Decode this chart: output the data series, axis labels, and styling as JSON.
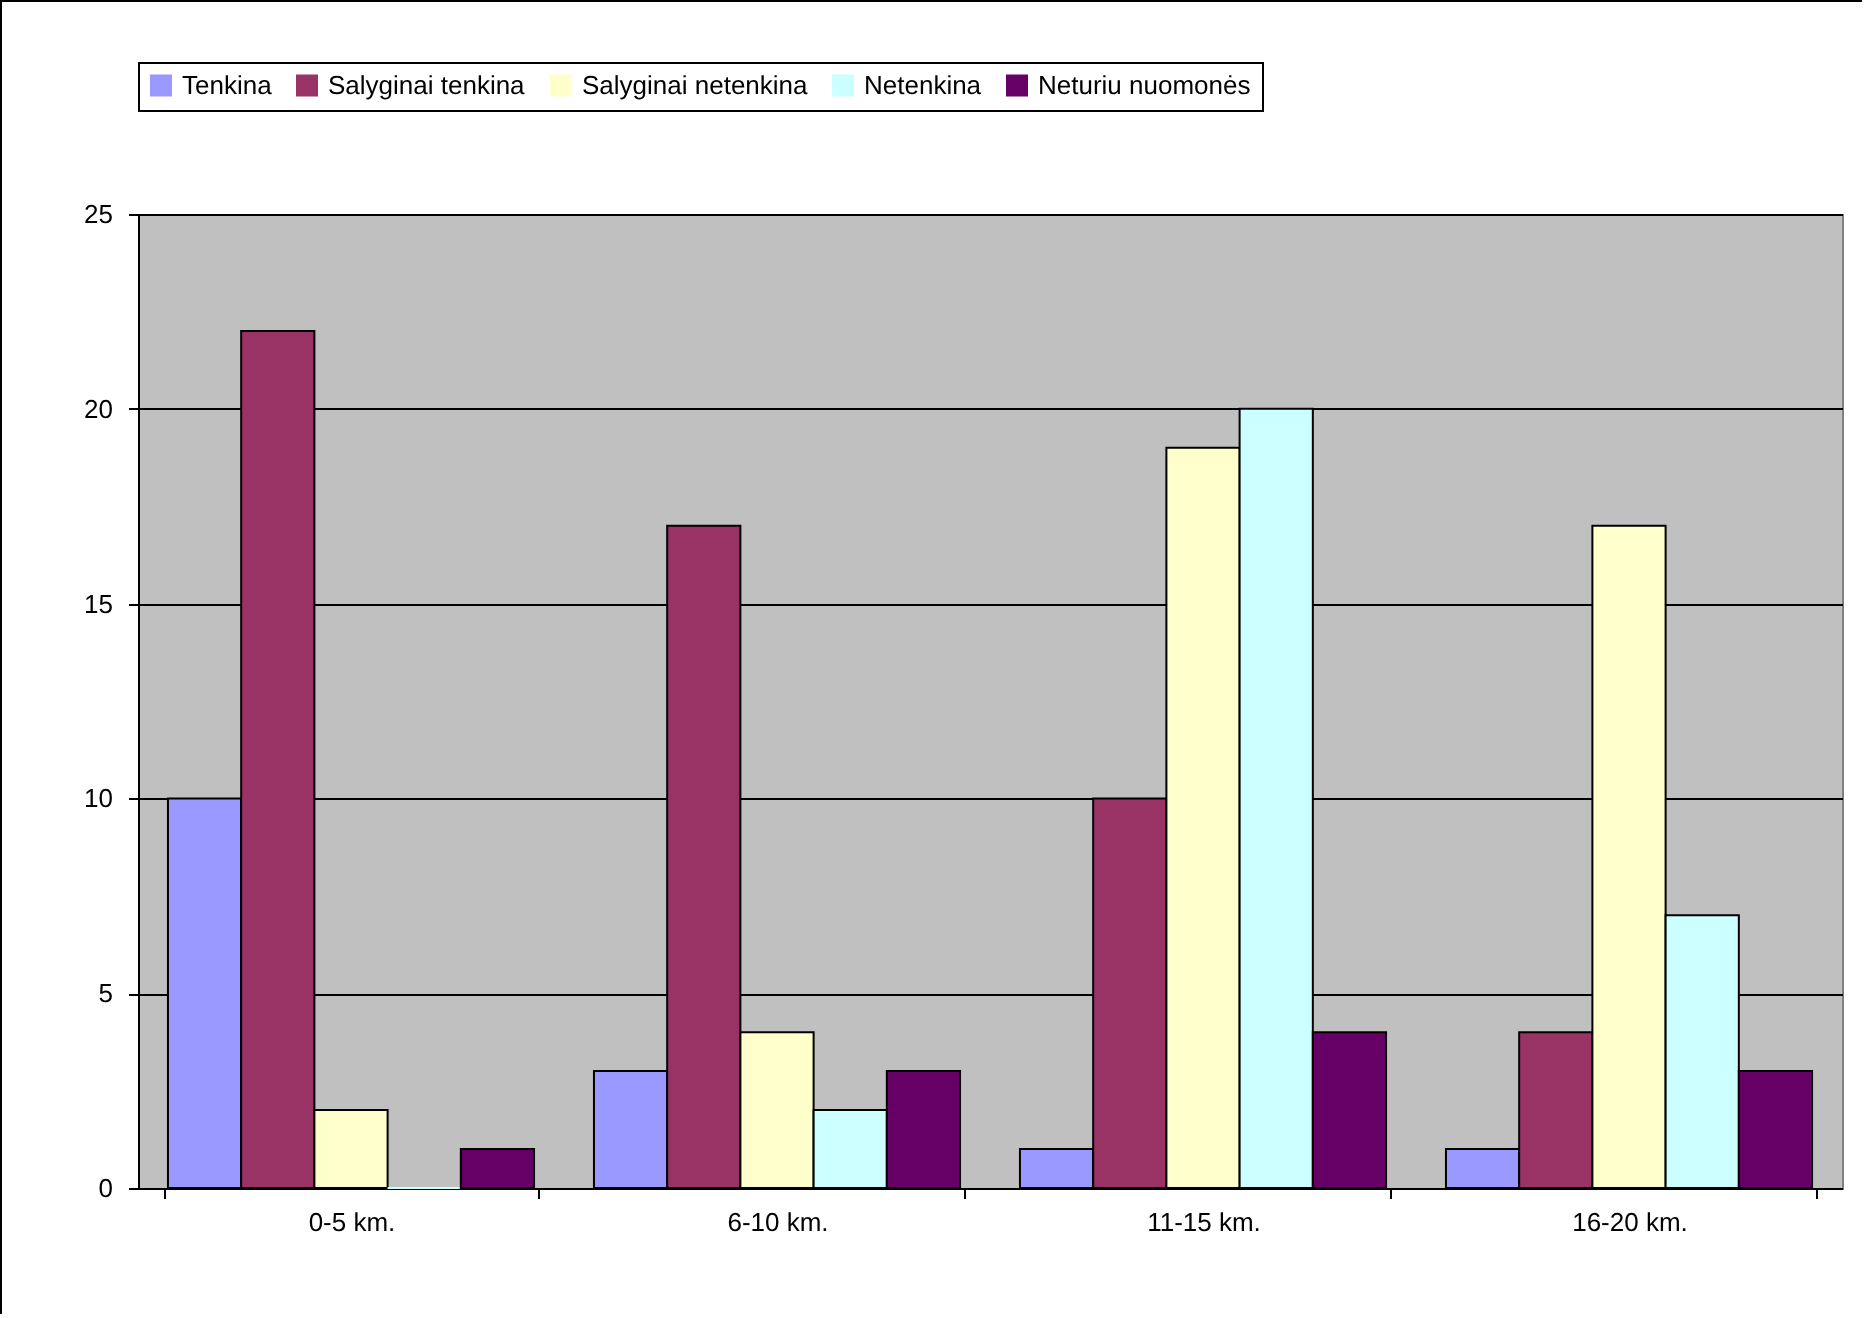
{
  "chart_data": {
    "type": "bar",
    "categories": [
      "0-5 km.",
      "6-10 km.",
      "11-15 km.",
      "16-20 km."
    ],
    "series": [
      {
        "name": "Tenkina",
        "color": "#9999ff",
        "values": [
          10,
          3,
          1,
          1
        ]
      },
      {
        "name": "Salyginai tenkina",
        "color": "#993366",
        "values": [
          22,
          17,
          10,
          4
        ]
      },
      {
        "name": "Salyginai netenkina",
        "color": "#ffffcc",
        "values": [
          2,
          4,
          19,
          17
        ]
      },
      {
        "name": "Netenkina",
        "color": "#ccffff",
        "values": [
          0,
          2,
          20,
          7
        ]
      },
      {
        "name": "Neturiu nuomonės",
        "color": "#660066",
        "values": [
          1,
          3,
          4,
          3
        ]
      }
    ],
    "ylim": [
      0,
      25
    ],
    "yticks": [
      0,
      5,
      10,
      15,
      20,
      25
    ],
    "grid": "y",
    "legend": "top"
  }
}
